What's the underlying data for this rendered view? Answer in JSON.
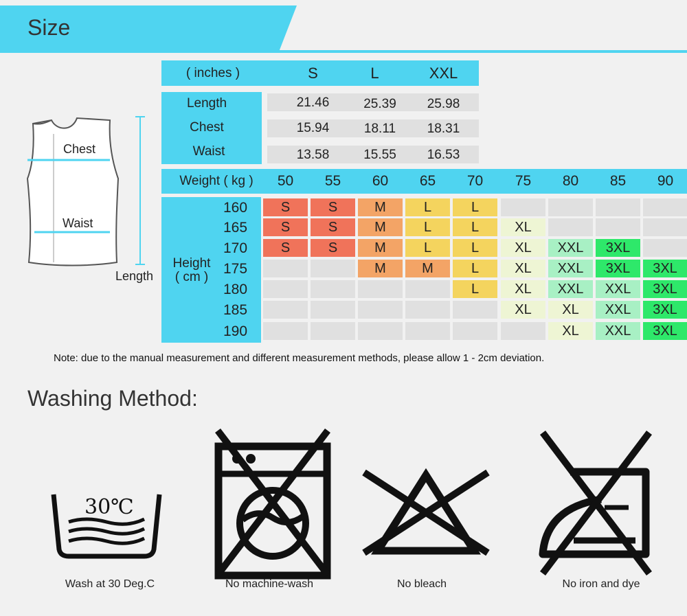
{
  "header": {
    "title": "Size"
  },
  "measure_table": {
    "unit_label": "( inches )",
    "sizes": [
      "S",
      "L",
      "XXL"
    ],
    "rows": [
      {
        "label": "Length",
        "values": [
          "21.46",
          "25.39",
          "25.98"
        ]
      },
      {
        "label": "Chest",
        "values": [
          "15.94",
          "18.11",
          "18.31"
        ]
      },
      {
        "label": "Waist",
        "values": [
          "13.58",
          "15.55",
          "16.53"
        ]
      }
    ]
  },
  "diagram": {
    "chest_label": "Chest",
    "waist_label": "Waist",
    "length_label": "Length"
  },
  "size_chart": {
    "weight_label": "Weight ( kg )",
    "weights": [
      "50",
      "55",
      "60",
      "65",
      "70",
      "75",
      "80",
      "85",
      "90"
    ],
    "height_label_line1": "Height",
    "height_label_line2": "( cm )",
    "heights": [
      "160",
      "165",
      "170",
      "175",
      "180",
      "185",
      "190"
    ],
    "grid": [
      [
        "S",
        "S",
        "M",
        "L",
        "L",
        "",
        "",
        "",
        ""
      ],
      [
        "S",
        "S",
        "M",
        "L",
        "L",
        "XL",
        "",
        "",
        ""
      ],
      [
        "S",
        "S",
        "M",
        "L",
        "L",
        "XL",
        "XXL",
        "3XL",
        ""
      ],
      [
        "",
        "",
        "M",
        "M",
        "L",
        "XL",
        "XXL",
        "3XL",
        "3XL"
      ],
      [
        "",
        "",
        "",
        "",
        "L",
        "XL",
        "XXL",
        "XXL",
        "3XL"
      ],
      [
        "",
        "",
        "",
        "",
        "",
        "XL",
        "XL",
        "XXL",
        "3XL"
      ],
      [
        "",
        "",
        "",
        "",
        "",
        "",
        "XL",
        "XXL",
        "3XL"
      ]
    ],
    "size_colors": {
      "S": "#f0735a",
      "M": "#f3a466",
      "L": "#f4d45e",
      "XL": "#eef5d4",
      "XXL": "#a8f0c4",
      "3XL": "#2ee86a",
      "empty": "#e0e0e0"
    }
  },
  "note": "Note: due to the manual measurement and different measurement methods, please allow 1 - 2cm deviation.",
  "washing": {
    "title": "Washing Method:",
    "items": [
      {
        "icon": "wash-30-icon",
        "temp": "30℃",
        "caption": "Wash at 30 Deg.C"
      },
      {
        "icon": "no-machine-wash-icon",
        "caption": "No machine-wash"
      },
      {
        "icon": "no-bleach-icon",
        "caption": "No bleach"
      },
      {
        "icon": "no-iron-icon",
        "caption": "No iron and dye"
      }
    ]
  },
  "accent_color": "#4fd4f0"
}
